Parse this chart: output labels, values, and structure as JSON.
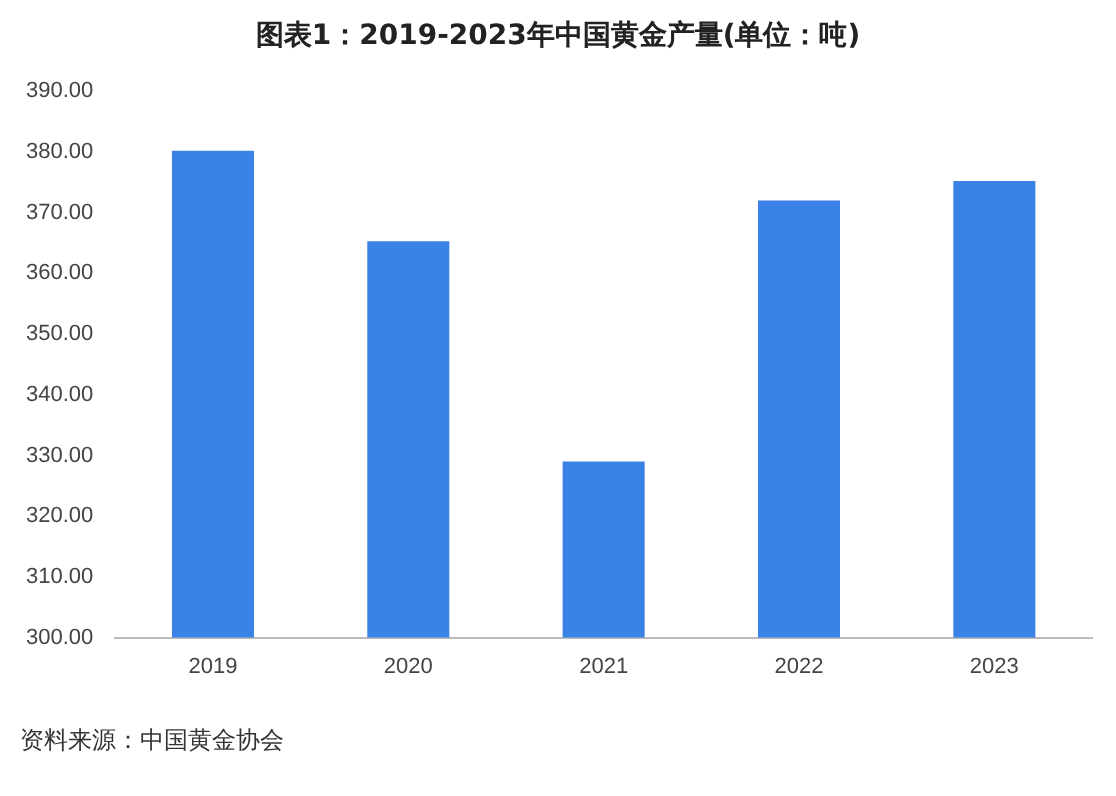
{
  "chart_data": {
    "type": "bar",
    "title": "图表1：2019-2023年中国黄金产量(单位：吨)",
    "categories": [
      "2019",
      "2020",
      "2021",
      "2022",
      "2023"
    ],
    "values": [
      380.2,
      365.3,
      329.0,
      372.0,
      375.2
    ],
    "color": "#3b82e6",
    "ylim": [
      300,
      390
    ],
    "yticks": [
      {
        "value": 300,
        "label": "300.00"
      },
      {
        "value": 310,
        "label": "310.00"
      },
      {
        "value": 320,
        "label": "320.00"
      },
      {
        "value": 330,
        "label": "330.00"
      },
      {
        "value": 340,
        "label": "340.00"
      },
      {
        "value": 350,
        "label": "350.00"
      },
      {
        "value": 360,
        "label": "360.00"
      },
      {
        "value": 370,
        "label": "370.00"
      },
      {
        "value": 380,
        "label": "380.00"
      },
      {
        "value": 390,
        "label": "390.00"
      }
    ],
    "annotations": [
      "资料来源：中国黄金协会"
    ]
  }
}
